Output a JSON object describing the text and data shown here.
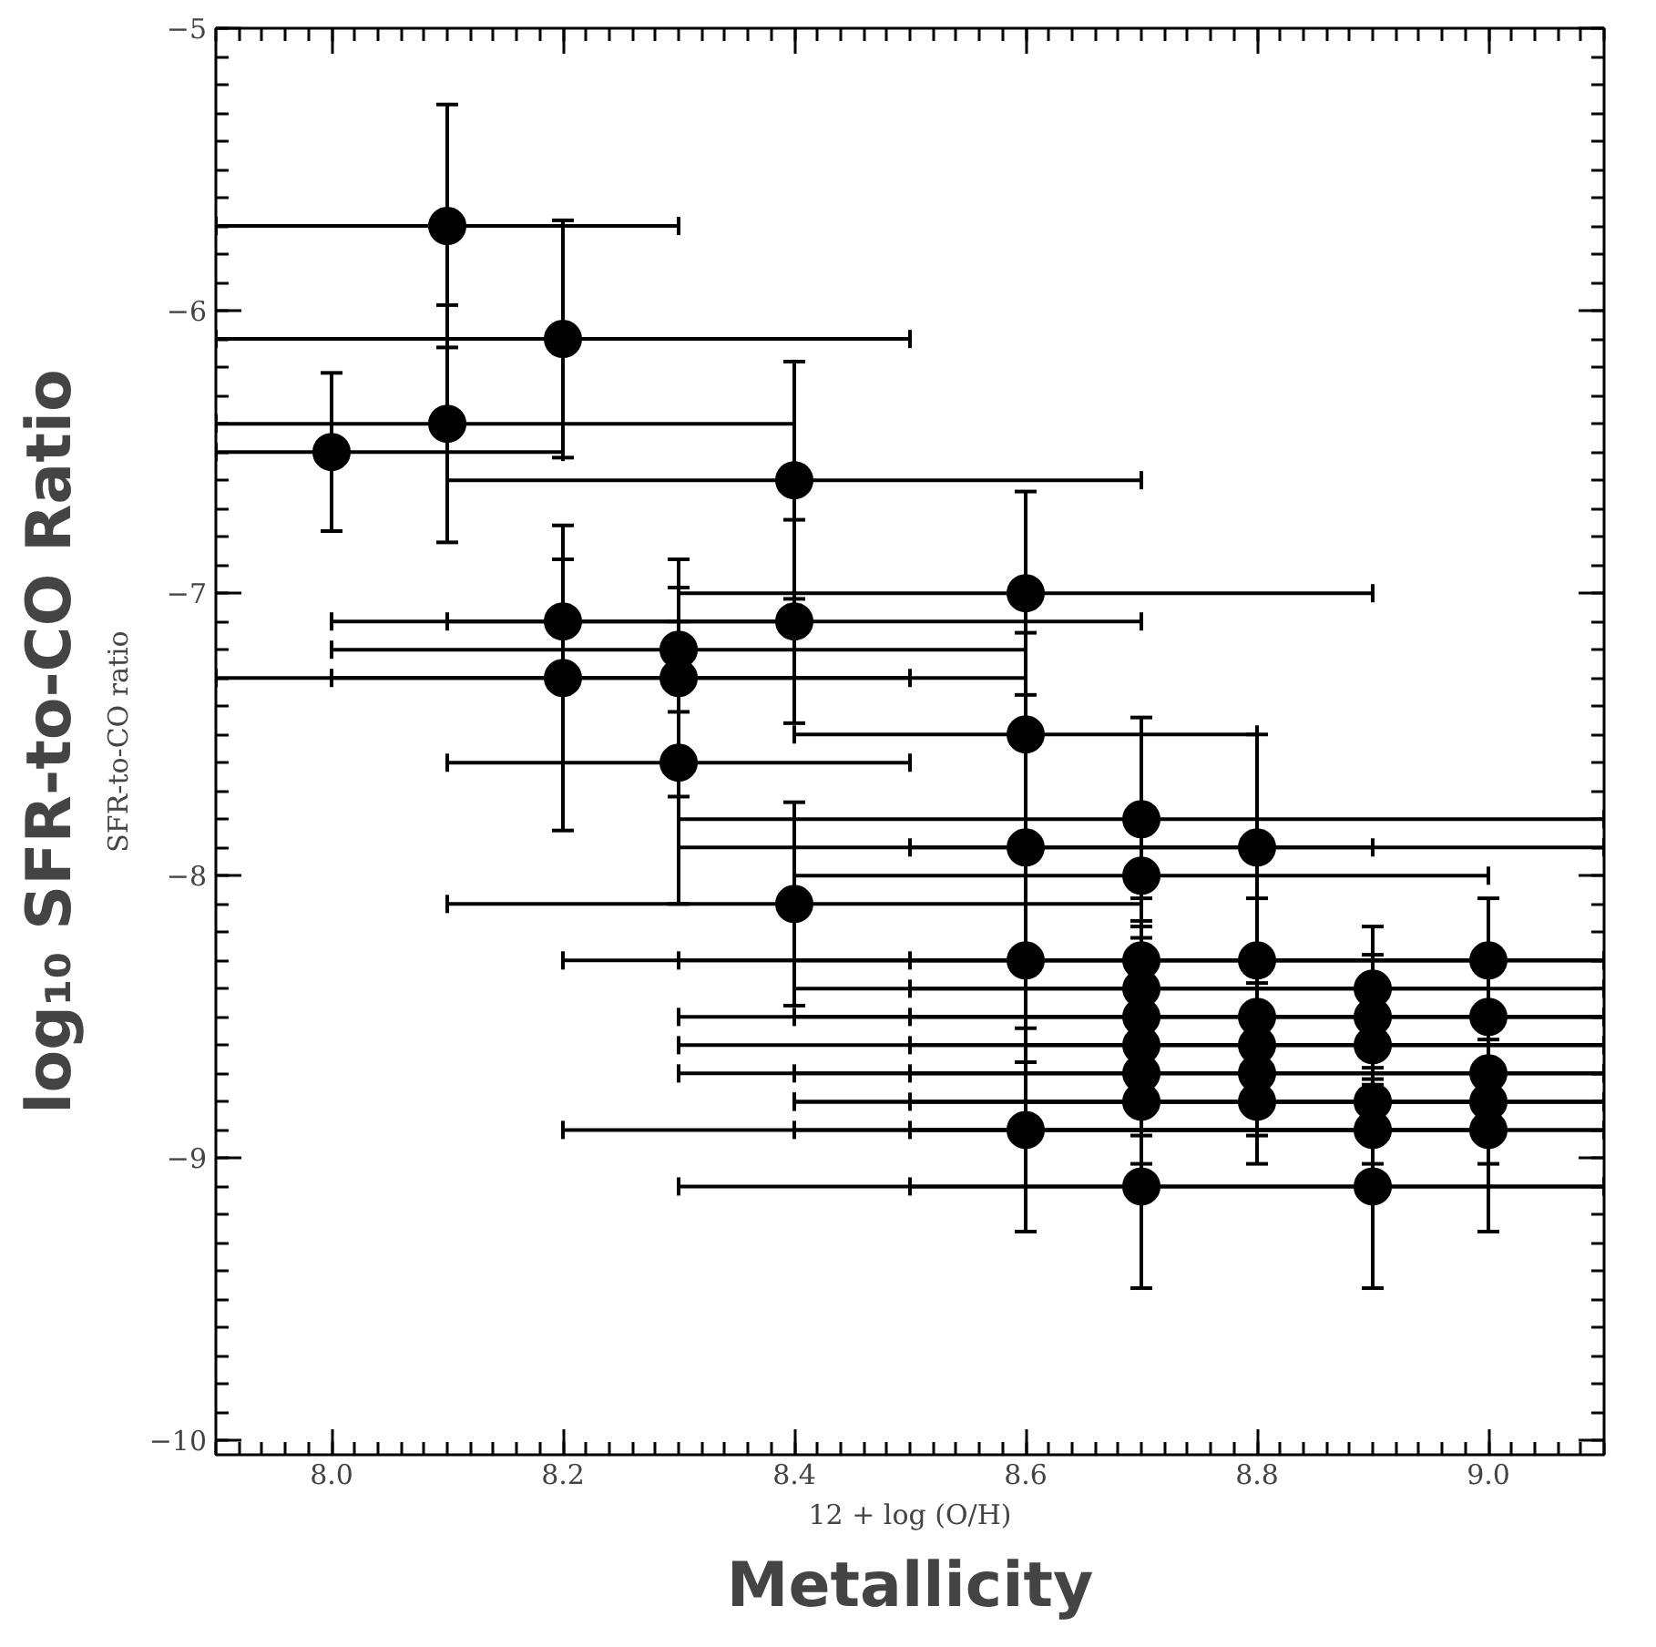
{
  "chart_data": {
    "type": "scatter",
    "xlabel": "12 + log (O/H)",
    "ylabel": "SFR-to-CO ratio",
    "annotations": [
      "Metallicity",
      "log₁₀ SFR-to-CO Ratio"
    ],
    "xlim": [
      7.9,
      9.1
    ],
    "ylim": [
      -10.05,
      -5
    ],
    "xticks": [
      {
        "value": 8.0,
        "label": "8.0"
      },
      {
        "value": 8.2,
        "label": "8.2"
      },
      {
        "value": 8.4,
        "label": "8.4"
      },
      {
        "value": 8.6,
        "label": "8.6"
      },
      {
        "value": 8.8,
        "label": "8.8"
      },
      {
        "value": 9.0,
        "label": "9.0"
      }
    ],
    "yticks": [
      {
        "value": -10,
        "label": "−10"
      },
      {
        "value": -9,
        "label": "−9"
      },
      {
        "value": -8,
        "label": "−8"
      },
      {
        "value": -7,
        "label": "−7"
      },
      {
        "value": -6,
        "label": "−6"
      },
      {
        "value": -5,
        "label": "−5"
      }
    ],
    "grid": false,
    "marker": "circle",
    "series": [
      {
        "color": "#000000",
        "x": [
          8.0,
          8.1,
          8.1,
          8.2,
          8.4,
          8.2,
          8.4,
          8.3,
          8.2,
          8.3,
          8.3,
          8.4,
          8.6,
          8.6,
          8.6,
          8.6,
          8.6,
          8.7,
          8.7,
          8.7,
          8.7,
          8.7,
          8.7,
          8.7,
          8.7,
          8.7,
          8.8,
          8.8,
          8.8,
          8.8,
          8.8,
          8.8,
          8.9,
          8.9,
          8.9,
          8.9,
          8.9,
          8.9,
          9.0,
          9.0,
          9.0,
          9.0,
          9.0
        ],
        "values": [
          -6.5,
          -5.7,
          -6.4,
          -6.1,
          -6.6,
          -7.1,
          -7.1,
          -7.2,
          -7.3,
          -7.3,
          -7.6,
          -8.1,
          -7.0,
          -7.5,
          -7.9,
          -8.3,
          -8.9,
          -7.8,
          -8.0,
          -8.3,
          -8.4,
          -8.5,
          -8.6,
          -8.7,
          -8.8,
          -9.1,
          -7.9,
          -8.3,
          -8.5,
          -8.6,
          -8.7,
          -8.8,
          -8.4,
          -8.5,
          -8.6,
          -8.8,
          -8.9,
          -9.1,
          -8.3,
          -8.5,
          -8.7,
          -8.8,
          -8.9
        ],
        "xerrors": [
          [
            7.9,
            8.2
          ],
          0.2,
          [
            7.9,
            8.4
          ],
          0.3,
          0.3,
          0.2,
          0.3,
          0.3,
          0.3,
          0.3,
          0.2,
          0.3,
          0.3,
          0.2,
          0.3,
          0.4,
          0.4,
          0.4,
          0.3,
          0.4,
          0.3,
          0.4,
          0.4,
          0.4,
          0.3,
          0.4,
          0.3,
          0.3,
          0.3,
          0.3,
          0.3,
          0.3,
          [
            8.5,
            9.1
          ],
          [
            8.6,
            9.1
          ],
          [
            8.6,
            9.1
          ],
          [
            8.6,
            9.1
          ],
          [
            8.5,
            9.1
          ],
          [
            8.5,
            9.1
          ],
          [
            8.4,
            9.1
          ],
          [
            8.4,
            9.1
          ],
          [
            8.4,
            9.1
          ],
          [
            8.4,
            9.1
          ],
          [
            8.4,
            9.1
          ]
        ],
        "errors": [
          0.28,
          0.43,
          0.42,
          0.42,
          0.42,
          0.22,
          0.36,
          0.22,
          0.54,
          0.42,
          0.5,
          0.36,
          0.36,
          0.36,
          0.36,
          0.36,
          0.36,
          0.36,
          0.22,
          0.22,
          0.22,
          0.22,
          0.22,
          0.22,
          0.22,
          0.36,
          0.4,
          0.22,
          0.22,
          0.22,
          0.22,
          0.22,
          0.22,
          0.22,
          0.22,
          0.22,
          0.22,
          0.36,
          0.22,
          0.22,
          0.22,
          0.22,
          0.36
        ]
      }
    ]
  }
}
